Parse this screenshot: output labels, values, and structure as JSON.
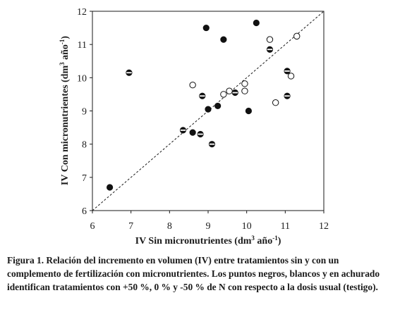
{
  "chart_data": {
    "type": "scatter",
    "xlabel": "IV Sin micronutrientes (dm",
    "ylabel": "IV Con micronutrientes (dm",
    "unit_sup": "3",
    "unit_mid": " año",
    "unit_exp": "-1",
    "unit_close": ")",
    "xlim": [
      6,
      12
    ],
    "ylim": [
      6,
      12
    ],
    "x_ticks": [
      "6",
      "7",
      "8",
      "9",
      "10",
      "11",
      "12"
    ],
    "y_ticks": [
      "6",
      "7",
      "8",
      "9",
      "10",
      "11",
      "12"
    ],
    "reference_line": "1:1 dashed",
    "series": [
      {
        "style": "filled",
        "points": [
          {
            "x": 6.45,
            "y": 6.7
          },
          {
            "x": 8.6,
            "y": 8.35
          },
          {
            "x": 9.0,
            "y": 9.05
          },
          {
            "x": 9.25,
            "y": 9.15
          },
          {
            "x": 8.95,
            "y": 11.5
          },
          {
            "x": 9.4,
            "y": 11.15
          },
          {
            "x": 10.05,
            "y": 9.0
          },
          {
            "x": 10.25,
            "y": 11.65
          }
        ]
      },
      {
        "style": "open",
        "points": [
          {
            "x": 8.6,
            "y": 9.78
          },
          {
            "x": 9.4,
            "y": 9.5
          },
          {
            "x": 9.55,
            "y": 9.6
          },
          {
            "x": 9.95,
            "y": 9.6
          },
          {
            "x": 9.95,
            "y": 9.82
          },
          {
            "x": 10.6,
            "y": 11.15
          },
          {
            "x": 10.75,
            "y": 9.25
          },
          {
            "x": 11.15,
            "y": 10.05
          },
          {
            "x": 11.3,
            "y": 11.25
          }
        ]
      },
      {
        "style": "hatched",
        "points": [
          {
            "x": 6.95,
            "y": 10.15
          },
          {
            "x": 8.35,
            "y": 8.42
          },
          {
            "x": 8.8,
            "y": 8.3
          },
          {
            "x": 8.85,
            "y": 9.45
          },
          {
            "x": 9.1,
            "y": 8.0
          },
          {
            "x": 9.7,
            "y": 9.55
          },
          {
            "x": 10.6,
            "y": 10.85
          },
          {
            "x": 11.05,
            "y": 10.2
          },
          {
            "x": 11.05,
            "y": 9.45
          }
        ]
      }
    ]
  },
  "caption": {
    "label": "Figura 1.",
    "text": " Relación del incremento en volumen (IV) entre tratamientos sin y con un complemento de fertilización con micronutrientes. Los puntos negros, blancos y en achurado identifican tratamientos con +50 %, 0 % y -50 % de N con respecto a la dosis usual (testigo)."
  }
}
